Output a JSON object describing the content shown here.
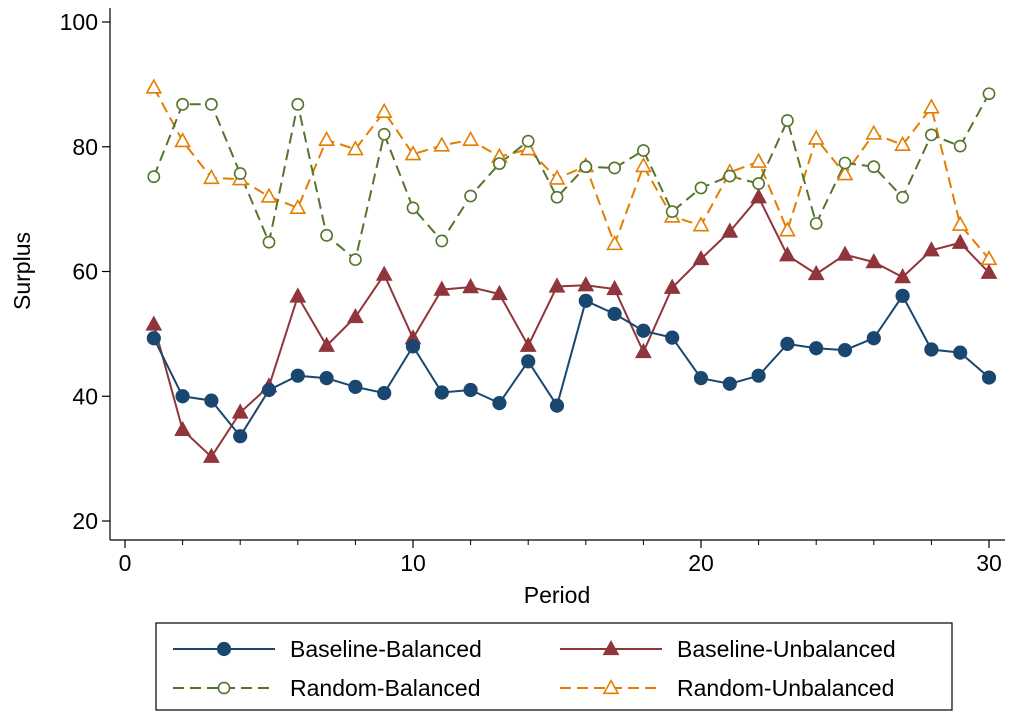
{
  "chart_data": {
    "type": "line",
    "title": "",
    "xlabel": "Period",
    "ylabel": "Surplus",
    "xlim": [
      0,
      30
    ],
    "ylim": [
      20,
      100
    ],
    "x_ticks": [
      0,
      10,
      20,
      30
    ],
    "x_minor_ticks": [
      2,
      4,
      6,
      8,
      12,
      14,
      16,
      18,
      22,
      24,
      26,
      28
    ],
    "y_ticks": [
      20,
      40,
      60,
      80,
      100
    ],
    "grid": false,
    "legend_position": "bottom",
    "x": [
      1,
      2,
      3,
      4,
      5,
      6,
      7,
      8,
      9,
      10,
      11,
      12,
      13,
      14,
      15,
      16,
      17,
      18,
      19,
      20,
      21,
      22,
      23,
      24,
      25,
      26,
      27,
      28,
      29,
      30
    ],
    "series": [
      {
        "name": "Baseline-Balanced",
        "color": "#1a476f",
        "marker": "filled-circle",
        "dash": "solid",
        "values": [
          49.3,
          40.0,
          39.3,
          33.6,
          41.0,
          43.3,
          42.9,
          41.5,
          40.5,
          48.0,
          40.6,
          41.0,
          38.9,
          45.6,
          38.5,
          55.3,
          53.2,
          50.5,
          49.4,
          42.9,
          42.0,
          43.3,
          48.4,
          47.7,
          47.4,
          49.3,
          56.1,
          47.5,
          47.0,
          43.0
        ]
      },
      {
        "name": "Baseline-Unbalanced",
        "color": "#90353b",
        "marker": "filled-triangle",
        "dash": "solid",
        "values": [
          51.5,
          34.6,
          30.3,
          37.4,
          41.6,
          56.0,
          48.1,
          52.7,
          59.5,
          49.3,
          57.1,
          57.5,
          56.4,
          48.1,
          57.6,
          57.8,
          57.2,
          47.1,
          57.4,
          62.0,
          66.4,
          71.9,
          62.6,
          59.6,
          62.7,
          61.5,
          59.1,
          63.4,
          64.6,
          59.8
        ]
      },
      {
        "name": "Random-Balanced",
        "color": "#55752f",
        "marker": "hollow-circle",
        "dash": "dashed",
        "values": [
          75.2,
          86.8,
          86.8,
          75.7,
          64.7,
          86.8,
          65.8,
          61.9,
          82.0,
          70.2,
          64.9,
          72.1,
          77.3,
          80.9,
          71.9,
          76.8,
          76.6,
          79.4,
          69.6,
          73.4,
          75.3,
          74.1,
          84.2,
          67.7,
          77.4,
          76.8,
          71.9,
          81.9,
          80.1,
          88.5
        ]
      },
      {
        "name": "Random-Unbalanced",
        "color": "#e37e00",
        "marker": "hollow-triangle",
        "dash": "dashed",
        "values": [
          89.5,
          80.9,
          75.0,
          74.8,
          72.0,
          70.2,
          81.1,
          79.6,
          85.6,
          78.8,
          80.2,
          81.1,
          78.4,
          79.6,
          74.9,
          76.9,
          64.4,
          76.9,
          68.8,
          67.4,
          75.9,
          77.6,
          66.6,
          81.3,
          75.6,
          82.1,
          80.3,
          86.3,
          67.5,
          62.0
        ]
      }
    ]
  }
}
